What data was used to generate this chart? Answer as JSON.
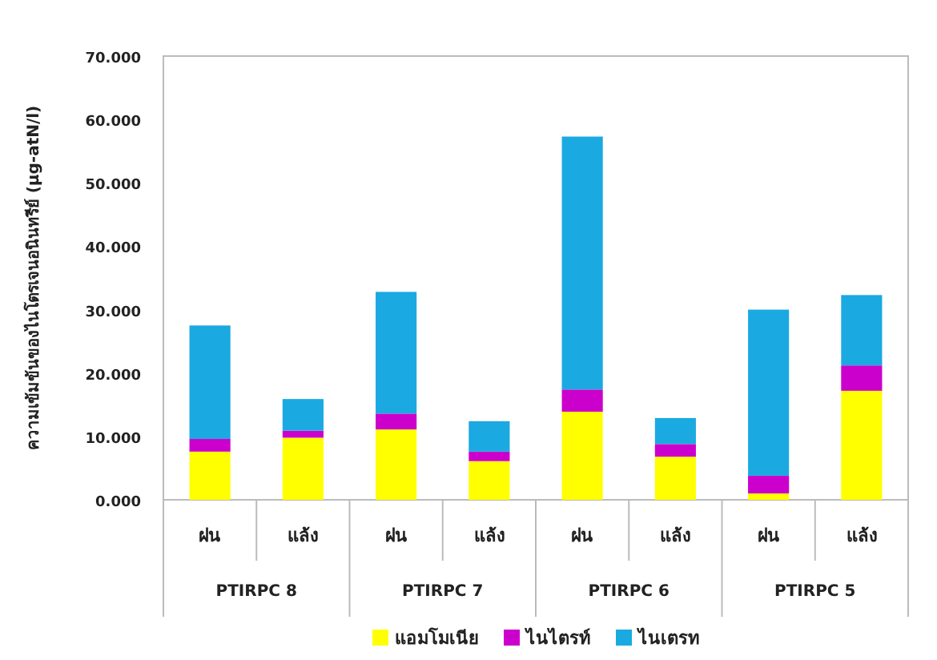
{
  "chart_data": {
    "type": "bar",
    "stacked": true,
    "ylabel": "ความเข้มข้นของไนโตรเจนอนินทรีย์ (µg-atN/l)",
    "categories": [
      "ฝน",
      "แล้ง",
      "ฝน",
      "แล้ง",
      "ฝน",
      "แล้ง",
      "ฝน",
      "แล้ง"
    ],
    "annotations": [
      "PTIRPC 8",
      "PTIRPC 7",
      "PTIRPC 6",
      "PTIRPC 5"
    ],
    "series": [
      {
        "name": "แอมโมเนีย",
        "color": "#ffff00",
        "values": [
          7.6,
          9.8,
          11.1,
          6.1,
          13.9,
          6.8,
          1.0,
          17.2
        ]
      },
      {
        "name": "ไนไตรท์",
        "color": "#cc00cc",
        "values": [
          2.0,
          1.1,
          2.5,
          1.5,
          3.5,
          2.0,
          2.8,
          4.0
        ]
      },
      {
        "name": "ไนเตรท",
        "color": "#1ba9e1",
        "values": [
          17.9,
          5.0,
          19.2,
          4.8,
          39.9,
          4.1,
          26.2,
          11.1
        ]
      }
    ],
    "ylim": [
      0,
      70
    ],
    "yticks": [
      {
        "value": 0,
        "label": "0.000"
      },
      {
        "value": 10,
        "label": "10.000"
      },
      {
        "value": 20,
        "label": "20.000"
      },
      {
        "value": 30,
        "label": "30.000"
      },
      {
        "value": 40,
        "label": "40.000"
      },
      {
        "value": 50,
        "label": "50.000"
      },
      {
        "value": 60,
        "label": "60.000"
      },
      {
        "value": 70,
        "label": "70.000"
      }
    ],
    "grid": false,
    "legend": "bottom"
  }
}
